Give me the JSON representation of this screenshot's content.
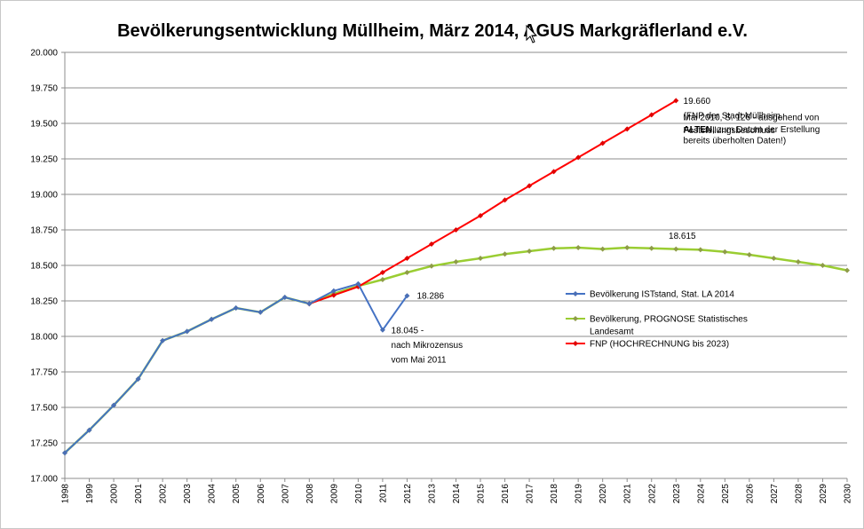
{
  "chart_data": {
    "type": "line",
    "title": "Bevölkerungsentwicklung Müllheim, März 2014, AGUS Markgräflerland e.V.",
    "xlabel": "",
    "ylabel": "",
    "ylim": [
      17000,
      20000
    ],
    "y_ticks": [
      "17.000",
      "17.250",
      "17.500",
      "17.750",
      "18.000",
      "18.250",
      "18.500",
      "18.750",
      "19.000",
      "19.250",
      "19.500",
      "19.750",
      "20.000"
    ],
    "x": [
      1998,
      1999,
      2000,
      2001,
      2002,
      2003,
      2004,
      2005,
      2006,
      2007,
      2008,
      2009,
      2010,
      2011,
      2012,
      2013,
      2014,
      2015,
      2016,
      2017,
      2018,
      2019,
      2020,
      2021,
      2022,
      2023,
      2024,
      2025,
      2026,
      2027,
      2028,
      2029,
      2030
    ],
    "grid": "horizontal",
    "legend_position": "right-middle",
    "series": [
      {
        "name": "Bevölkerung ISTstand, Stat. LA 2014",
        "color": "#4472c4",
        "marker_color": "#4a6fb5",
        "points": [
          [
            1998,
            17180
          ],
          [
            1999,
            17340
          ],
          [
            2000,
            17515
          ],
          [
            2001,
            17700
          ],
          [
            2002,
            17970
          ],
          [
            2003,
            18035
          ],
          [
            2004,
            18120
          ],
          [
            2005,
            18200
          ],
          [
            2006,
            18170
          ],
          [
            2007,
            18275
          ],
          [
            2008,
            18230
          ],
          [
            2009,
            18320
          ],
          [
            2010,
            18370
          ],
          [
            2011,
            18045
          ],
          [
            2012,
            18286
          ]
        ]
      },
      {
        "name": "Bevölkerung, PROGNOSE Statistisches Landesamt",
        "color": "#9acd32",
        "marker_color": "#8e9c48",
        "points": [
          [
            1998,
            17180
          ],
          [
            1999,
            17340
          ],
          [
            2000,
            17515
          ],
          [
            2001,
            17700
          ],
          [
            2002,
            17970
          ],
          [
            2003,
            18035
          ],
          [
            2004,
            18120
          ],
          [
            2005,
            18200
          ],
          [
            2006,
            18170
          ],
          [
            2007,
            18275
          ],
          [
            2008,
            18230
          ],
          [
            2009,
            18300
          ],
          [
            2010,
            18355
          ],
          [
            2011,
            18400
          ],
          [
            2012,
            18450
          ],
          [
            2013,
            18495
          ],
          [
            2014,
            18525
          ],
          [
            2015,
            18550
          ],
          [
            2016,
            18580
          ],
          [
            2017,
            18600
          ],
          [
            2018,
            18620
          ],
          [
            2019,
            18625
          ],
          [
            2020,
            18615
          ],
          [
            2021,
            18625
          ],
          [
            2022,
            18620
          ],
          [
            2023,
            18615
          ],
          [
            2024,
            18610
          ],
          [
            2025,
            18595
          ],
          [
            2026,
            18575
          ],
          [
            2027,
            18550
          ],
          [
            2028,
            18525
          ],
          [
            2029,
            18500
          ],
          [
            2030,
            18465
          ]
        ]
      },
      {
        "name": "FNP (HOCHRECHNUNG bis 2023)",
        "color": "#ff0000",
        "marker_color": "#e00000",
        "points": [
          [
            2008,
            18230
          ],
          [
            2009,
            18290
          ],
          [
            2010,
            18350
          ],
          [
            2011,
            18450
          ],
          [
            2012,
            18550
          ],
          [
            2013,
            18650
          ],
          [
            2014,
            18750
          ],
          [
            2015,
            18850
          ],
          [
            2016,
            18960
          ],
          [
            2017,
            19060
          ],
          [
            2018,
            19160
          ],
          [
            2019,
            19260
          ],
          [
            2020,
            19360
          ],
          [
            2021,
            19460
          ],
          [
            2022,
            19560
          ],
          [
            2023,
            19660
          ]
        ]
      }
    ],
    "annotations": [
      {
        "lines": [
          "19.660",
          "(FNP der Stadt Müllheim,",
          "Feststellungsbeschluss"
        ],
        "x": 2023.3,
        "y": 19660,
        "anchor": "start",
        "bold_word": ""
      },
      {
        "lines": [
          "Mai 2010, S. 126 - ausgehend von"
        ],
        "x": 2023.3,
        "y": 19545,
        "anchor": "start",
        "bold_word": ""
      },
      {
        "lines": [
          "ALTEN, zum Datum der Erstellung"
        ],
        "x": 2023.3,
        "y": 19460,
        "anchor": "start",
        "bold_word": "ALTEN,"
      },
      {
        "lines": [
          "bereits überholten Daten!)"
        ],
        "x": 2023.3,
        "y": 19380,
        "anchor": "start",
        "bold_word": ""
      },
      {
        "lines": [
          "18.615"
        ],
        "x": 2022.7,
        "y": 18710,
        "anchor": "start",
        "bold_word": ""
      },
      {
        "lines": [
          "18.286"
        ],
        "x": 2012.4,
        "y": 18286,
        "anchor": "start",
        "bold_word": ""
      },
      {
        "lines": [
          "18.045 -",
          "nach Mikrozensus",
          "vom Mai 2011"
        ],
        "x": 2011.35,
        "y": 18045,
        "anchor": "start",
        "bold_word": ""
      }
    ]
  }
}
